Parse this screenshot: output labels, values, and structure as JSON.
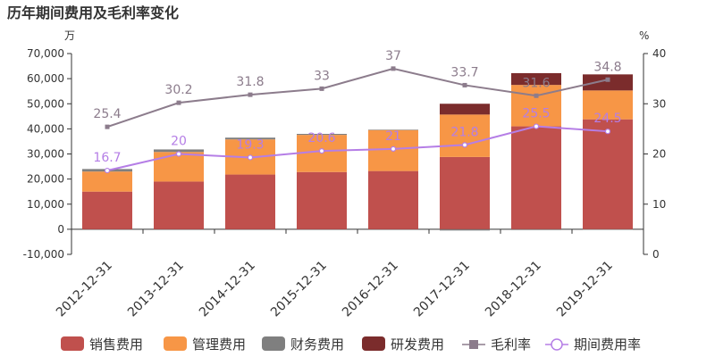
{
  "chart_data": {
    "type": "bar",
    "title": "历年期间费用及毛利率变化",
    "y_left_unit": "万",
    "y_right_unit": "%",
    "categories": [
      "2012-12-31",
      "2013-12-31",
      "2014-12-31",
      "2015-12-31",
      "2016-12-31",
      "2017-12-31",
      "2018-12-31",
      "2019-12-31"
    ],
    "stacked": true,
    "ylim_left": [
      -10000,
      70000
    ],
    "yticks_left": [
      "-10,000",
      "0",
      "10,000",
      "20,000",
      "30,000",
      "40,000",
      "50,000",
      "60,000",
      "70,000"
    ],
    "ylim_right": [
      0,
      40
    ],
    "yticks_right": [
      "0",
      "10",
      "20",
      "30",
      "40"
    ],
    "series": [
      {
        "name": "销售费用",
        "kind": "bar",
        "color": "#c0504d",
        "values": [
          15000,
          19000,
          21800,
          22800,
          23200,
          28800,
          41000,
          43800
        ]
      },
      {
        "name": "管理费用",
        "kind": "bar",
        "color": "#f79646",
        "values": [
          8000,
          11800,
          14000,
          14800,
          16300,
          16900,
          16500,
          11500
        ]
      },
      {
        "name": "财务费用",
        "kind": "bar",
        "color": "#7f7f7f",
        "values": [
          1000,
          1000,
          700,
          400,
          200,
          -500,
          -300,
          -200
        ]
      },
      {
        "name": "研发费用",
        "kind": "bar",
        "color": "#7b2c2c",
        "values": [
          0,
          0,
          0,
          0,
          0,
          4300,
          4700,
          6400
        ]
      },
      {
        "name": "毛利率",
        "kind": "line",
        "axis": "right",
        "color": "#8c7c8c",
        "marker": "square",
        "values": [
          25.4,
          30.2,
          31.8,
          33,
          37,
          33.7,
          31.6,
          34.8
        ],
        "labels": [
          "25.4",
          "30.2",
          "31.8",
          "33",
          "37",
          "33.7",
          "31.6",
          "34.8"
        ]
      },
      {
        "name": "期间费用率",
        "kind": "line",
        "axis": "right",
        "color": "#b57ee6",
        "marker": "circle",
        "values": [
          16.7,
          20,
          19.3,
          20.6,
          21,
          21.8,
          25.5,
          24.5
        ],
        "labels": [
          "16.7",
          "20",
          "19.3",
          "20.6",
          "21",
          "21.8",
          "25.5",
          "24.5"
        ]
      }
    ],
    "grid": false,
    "legend_position": "bottom"
  }
}
